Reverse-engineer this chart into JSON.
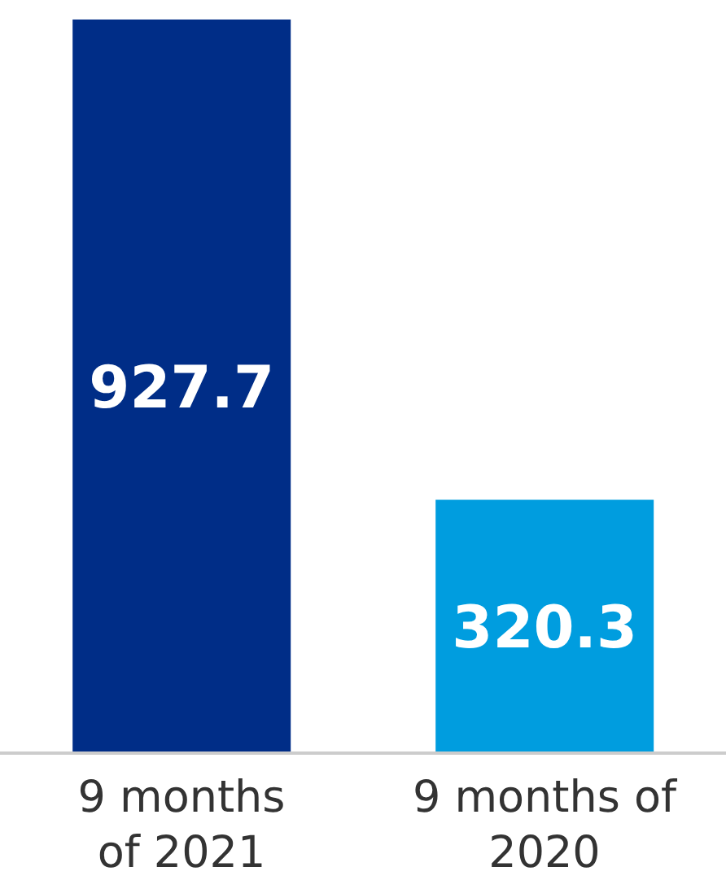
{
  "chart_data": {
    "type": "bar",
    "categories": [
      "9 months\nof 2021",
      "9 months of\n2020"
    ],
    "values": [
      927.7,
      320.3
    ],
    "colors": [
      "#002d87",
      "#009ddf"
    ],
    "data_labels": true
  }
}
